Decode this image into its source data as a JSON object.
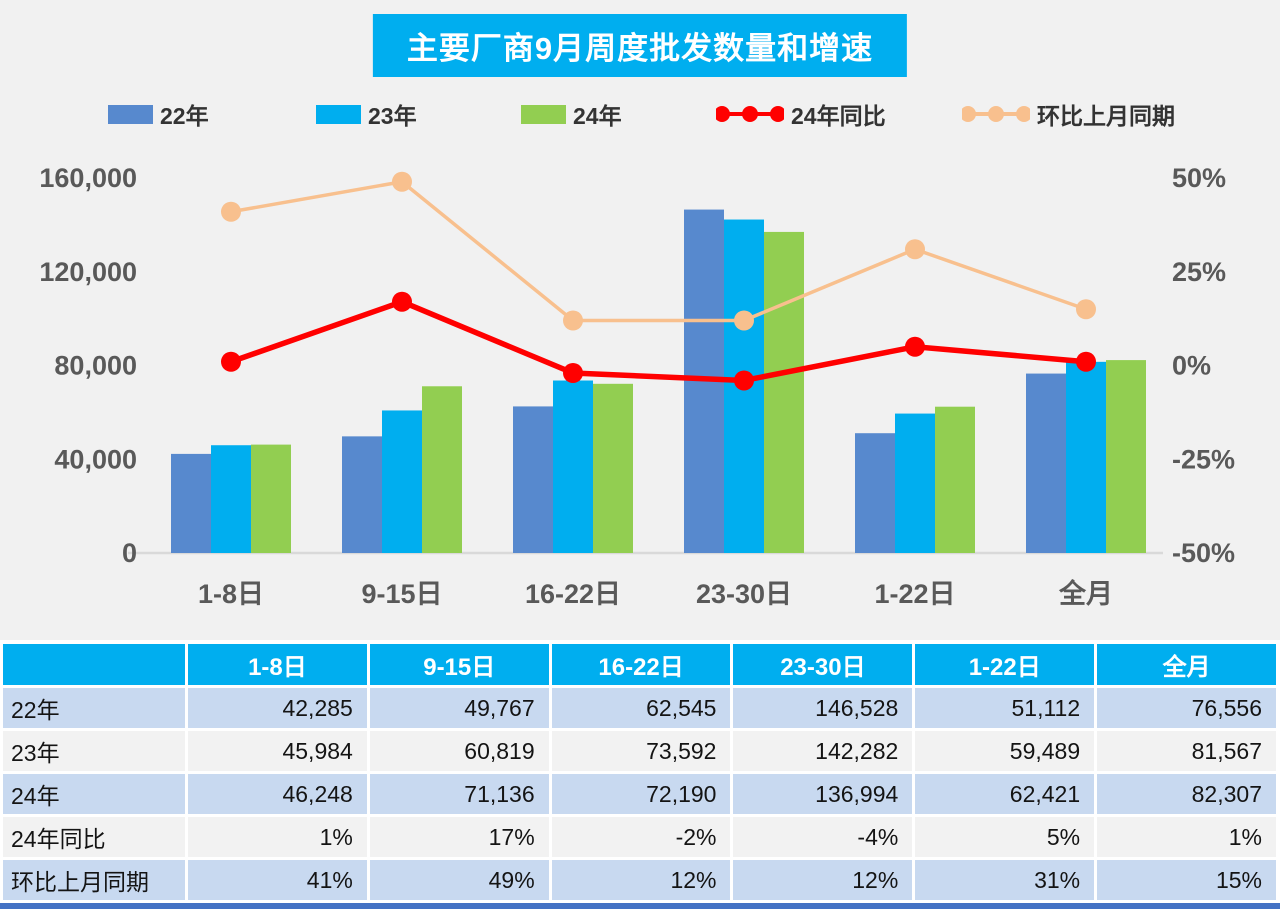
{
  "chart": {
    "title": "主要厂商9月周度批发数量和增速",
    "legend": [
      {
        "label": "22年",
        "type": "bar",
        "color": "#5789CE"
      },
      {
        "label": "23年",
        "type": "bar",
        "color": "#00AEEF"
      },
      {
        "label": "24年",
        "type": "bar",
        "color": "#92CE51"
      },
      {
        "label": "24年同比",
        "type": "line",
        "color": "#FF0000"
      },
      {
        "label": "环比上月同期",
        "type": "line",
        "color": "#F8C08E"
      }
    ]
  },
  "chart_data": {
    "type": "bar+line",
    "title": "主要厂商9月周度批发数量和增速",
    "categories": [
      "1-8日",
      "9-15日",
      "16-22日",
      "23-30日",
      "1-22日",
      "全月"
    ],
    "bar_series": [
      {
        "name": "22年",
        "color": "#5789CE",
        "values": [
          42285,
          49767,
          62545,
          146528,
          51112,
          76556
        ]
      },
      {
        "name": "23年",
        "color": "#00AEEF",
        "values": [
          45984,
          60819,
          73592,
          142282,
          59489,
          81567
        ]
      },
      {
        "name": "24年",
        "color": "#92CE51",
        "values": [
          46248,
          71136,
          72190,
          136994,
          62421,
          82307
        ]
      }
    ],
    "line_series": [
      {
        "name": "24年同比",
        "color": "#FF0000",
        "axis": "right",
        "values_pct": [
          1,
          17,
          -2,
          -4,
          5,
          1
        ]
      },
      {
        "name": "环比上月同期",
        "color": "#F8C08E",
        "axis": "right",
        "values_pct": [
          41,
          49,
          12,
          12,
          31,
          15
        ]
      }
    ],
    "left_axis": {
      "min": 0,
      "max": 160000,
      "tick_values": [
        160000,
        120000,
        80000,
        40000,
        0
      ],
      "tick_labels": [
        "160,000",
        "120,000",
        "80,000",
        "40,000",
        "0"
      ]
    },
    "right_axis": {
      "min": -50,
      "max": 50,
      "tick_values": [
        50,
        25,
        0,
        -25,
        -50
      ],
      "tick_labels": [
        "50%",
        "25%",
        "0%",
        "-25%",
        "-50%"
      ]
    },
    "grid": "off",
    "legend_position": "top"
  },
  "table": {
    "columns": [
      "",
      "1-8日",
      "9-15日",
      "16-22日",
      "23-30日",
      "1-22日",
      "全月"
    ],
    "rows": [
      {
        "label": "22年",
        "cells": [
          "42,285",
          "49,767",
          "62,545",
          "146,528",
          "51,112",
          "76,556"
        ]
      },
      {
        "label": "23年",
        "cells": [
          "45,984",
          "60,819",
          "73,592",
          "142,282",
          "59,489",
          "81,567"
        ]
      },
      {
        "label": "24年",
        "cells": [
          "46,248",
          "71,136",
          "72,190",
          "136,994",
          "62,421",
          "82,307"
        ]
      },
      {
        "label": "24年同比",
        "cells": [
          "1%",
          "17%",
          "-2%",
          "-4%",
          "5%",
          "1%"
        ]
      },
      {
        "label": "环比上月同期",
        "cells": [
          "41%",
          "49%",
          "12%",
          "12%",
          "31%",
          "15%"
        ]
      }
    ]
  },
  "colors": {
    "accent_cyan": "#00AEEF",
    "bar_blue": "#5789CE",
    "bar_cyan": "#00AEEF",
    "bar_green": "#92CE51",
    "line_red": "#FF0000",
    "line_peach": "#F8C08E",
    "row_blue": "#C8D9F0",
    "row_light": "#F2F2F2",
    "chart_bg": "#F1F1F1",
    "axis_text": "#595959",
    "table_bottom_border": "#4472C4"
  }
}
